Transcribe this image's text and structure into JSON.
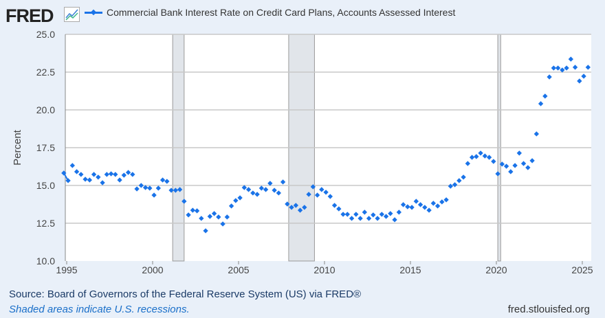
{
  "header": {
    "logo": "FRED",
    "logo_icon": "line-chart-icon"
  },
  "footer": {
    "source": "Source: Board of Governors of the Federal Reserve System (US) via FRED®",
    "note": "Shaded areas indicate U.S. recessions.",
    "site": "fred.stlouisfed.org"
  },
  "colors": {
    "series": "#1a73e8",
    "recession": "#e1e5ea",
    "background": "#e9f0f9",
    "grid": "#c8c8c8"
  },
  "chart_data": {
    "type": "scatter",
    "title": "",
    "xlabel": "",
    "ylabel": "Percent",
    "ylim": [
      10,
      25
    ],
    "xlim": [
      "1994-11",
      "2025-08"
    ],
    "yticks": [
      "10.0",
      "12.5",
      "15.0",
      "17.5",
      "20.0",
      "22.5",
      "25.0"
    ],
    "xticks": [
      "1995",
      "2000",
      "2005",
      "2010",
      "2015",
      "2020",
      "2025"
    ],
    "grid": "horizontal",
    "legend": "top-left",
    "recessions": [
      [
        "2001-03",
        "2001-11"
      ],
      [
        "2007-12",
        "2009-06"
      ],
      [
        "2020-02",
        "2020-04"
      ]
    ],
    "series": [
      {
        "name": "Commercial Bank Interest Rate on Credit Card Plans, Accounts Assessed Interest",
        "x": [
          "1994-11",
          "1995-02",
          "1995-05",
          "1995-08",
          "1995-11",
          "1996-02",
          "1996-05",
          "1996-08",
          "1996-11",
          "1997-02",
          "1997-05",
          "1997-08",
          "1997-11",
          "1998-02",
          "1998-05",
          "1998-08",
          "1998-11",
          "1999-02",
          "1999-05",
          "1999-08",
          "1999-11",
          "2000-02",
          "2000-05",
          "2000-08",
          "2000-11",
          "2001-02",
          "2001-05",
          "2001-08",
          "2001-11",
          "2002-02",
          "2002-05",
          "2002-08",
          "2002-11",
          "2003-02",
          "2003-05",
          "2003-08",
          "2003-11",
          "2004-02",
          "2004-05",
          "2004-08",
          "2004-11",
          "2005-02",
          "2005-05",
          "2005-08",
          "2005-11",
          "2006-02",
          "2006-05",
          "2006-08",
          "2006-11",
          "2007-02",
          "2007-05",
          "2007-08",
          "2007-11",
          "2008-02",
          "2008-05",
          "2008-08",
          "2008-11",
          "2009-02",
          "2009-05",
          "2009-08",
          "2009-11",
          "2010-02",
          "2010-05",
          "2010-08",
          "2010-11",
          "2011-02",
          "2011-05",
          "2011-08",
          "2011-11",
          "2012-02",
          "2012-05",
          "2012-08",
          "2012-11",
          "2013-02",
          "2013-05",
          "2013-08",
          "2013-11",
          "2014-02",
          "2014-05",
          "2014-08",
          "2014-11",
          "2015-02",
          "2015-05",
          "2015-08",
          "2015-11",
          "2016-02",
          "2016-05",
          "2016-08",
          "2016-11",
          "2017-02",
          "2017-05",
          "2017-08",
          "2017-11",
          "2018-02",
          "2018-05",
          "2018-08",
          "2018-11",
          "2019-02",
          "2019-05",
          "2019-08",
          "2019-11",
          "2020-02",
          "2020-05",
          "2020-08",
          "2020-11",
          "2021-02",
          "2021-05",
          "2021-08",
          "2021-11",
          "2022-02",
          "2022-05",
          "2022-08",
          "2022-11",
          "2023-02",
          "2023-05",
          "2023-08",
          "2023-11",
          "2024-02",
          "2024-05",
          "2024-08",
          "2024-11",
          "2025-02",
          "2025-05"
        ],
        "values": [
          15.82,
          15.32,
          16.32,
          15.91,
          15.73,
          15.41,
          15.36,
          15.73,
          15.55,
          15.18,
          15.73,
          15.77,
          15.73,
          15.36,
          15.68,
          15.86,
          15.73,
          14.77,
          15.0,
          14.86,
          14.82,
          14.36,
          14.82,
          15.36,
          15.27,
          14.68,
          14.68,
          14.73,
          13.95,
          13.05,
          13.36,
          13.32,
          12.82,
          12.0,
          12.95,
          13.14,
          12.91,
          12.45,
          12.91,
          13.64,
          14.0,
          14.18,
          14.86,
          14.73,
          14.5,
          14.41,
          14.82,
          14.73,
          15.14,
          14.68,
          14.5,
          15.23,
          13.77,
          13.55,
          13.68,
          13.36,
          13.55,
          14.41,
          14.91,
          14.36,
          14.73,
          14.55,
          14.27,
          13.68,
          13.45,
          13.09,
          13.09,
          12.82,
          13.09,
          12.82,
          13.23,
          12.82,
          13.05,
          12.82,
          13.09,
          12.95,
          13.14,
          12.73,
          13.23,
          13.73,
          13.59,
          13.55,
          13.95,
          13.73,
          13.55,
          13.36,
          13.82,
          13.64,
          13.91,
          14.05,
          14.95,
          15.05,
          15.32,
          15.55,
          16.45,
          16.86,
          16.91,
          17.14,
          16.95,
          16.86,
          16.59,
          15.77,
          16.41,
          16.27,
          15.91,
          16.32,
          17.14,
          16.45,
          16.18,
          16.64,
          18.41,
          20.41,
          20.91,
          22.18,
          22.77,
          22.77,
          22.64,
          22.77,
          23.36,
          22.82,
          21.91,
          22.23,
          22.82
        ]
      }
    ]
  }
}
